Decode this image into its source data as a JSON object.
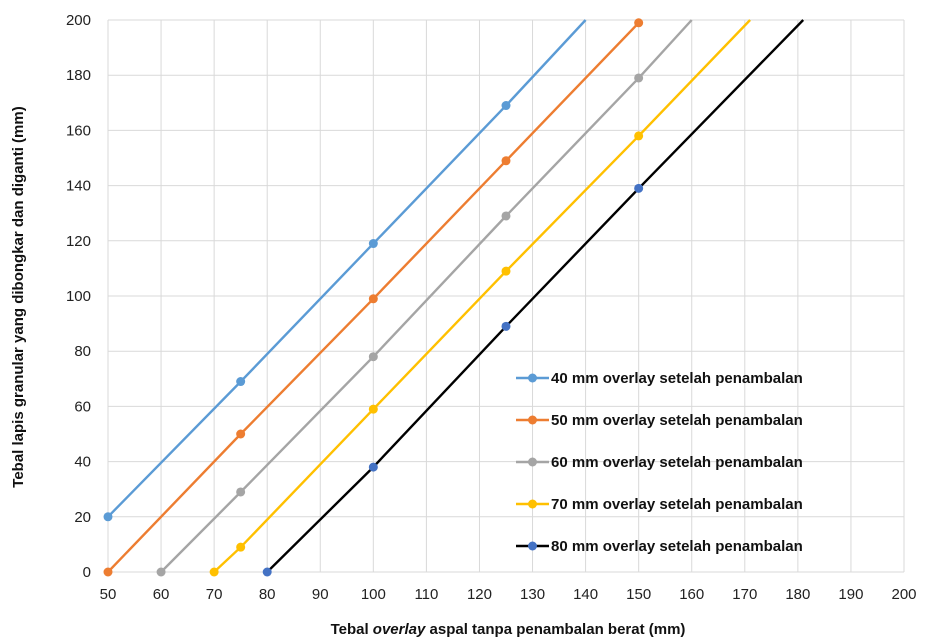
{
  "chart_data": {
    "type": "line",
    "title": "",
    "xlabel": {
      "pre": "Tebal ",
      "italic": "overlay",
      "post": " aspal tanpa penambalan berat (mm)"
    },
    "ylabel": "Tebal lapis granular yang dibongkar dan diganti (mm)",
    "xlim": [
      50,
      200
    ],
    "ylim": [
      0,
      200
    ],
    "xticks": [
      50,
      60,
      70,
      80,
      90,
      100,
      110,
      120,
      130,
      140,
      150,
      160,
      170,
      180,
      190,
      200
    ],
    "yticks": [
      0,
      20,
      40,
      60,
      80,
      100,
      120,
      140,
      160,
      180,
      200
    ],
    "grid": true,
    "legend_position": "bottom-right",
    "series": [
      {
        "name": "40 mm overlay setelah penambalan",
        "color": "#5b9bd5",
        "marker_color": "#5b9bd5",
        "points": [
          [
            50,
            20
          ],
          [
            75,
            69
          ],
          [
            100,
            119
          ],
          [
            125,
            169
          ],
          [
            140,
            200
          ]
        ],
        "markers": [
          [
            50,
            20
          ],
          [
            75,
            69
          ],
          [
            100,
            119
          ],
          [
            125,
            169
          ]
        ]
      },
      {
        "name": "50 mm overlay setelah penambalan",
        "color": "#ed7d31",
        "marker_color": "#ed7d31",
        "points": [
          [
            50,
            0
          ],
          [
            75,
            50
          ],
          [
            100,
            99
          ],
          [
            125,
            149
          ],
          [
            150,
            199
          ]
        ],
        "markers": [
          [
            50,
            0
          ],
          [
            75,
            50
          ],
          [
            100,
            99
          ],
          [
            125,
            149
          ],
          [
            150,
            199
          ]
        ]
      },
      {
        "name": "60 mm overlay setelah penambalan",
        "color": "#a5a5a5",
        "marker_color": "#a5a5a5",
        "points": [
          [
            60,
            0
          ],
          [
            75,
            29
          ],
          [
            100,
            78
          ],
          [
            125,
            129
          ],
          [
            150,
            179
          ],
          [
            160,
            200
          ]
        ],
        "markers": [
          [
            60,
            0
          ],
          [
            75,
            29
          ],
          [
            100,
            78
          ],
          [
            125,
            129
          ],
          [
            150,
            179
          ]
        ]
      },
      {
        "name": "70 mm overlay setelah penambalan",
        "color": "#ffc000",
        "marker_color": "#ffc000",
        "points": [
          [
            70,
            0
          ],
          [
            75,
            9
          ],
          [
            100,
            59
          ],
          [
            125,
            109
          ],
          [
            150,
            158
          ],
          [
            171,
            200
          ]
        ],
        "markers": [
          [
            70,
            0
          ],
          [
            75,
            9
          ],
          [
            100,
            59
          ],
          [
            125,
            109
          ],
          [
            150,
            158
          ]
        ]
      },
      {
        "name": "80 mm overlay setelah penambalan",
        "color": "#000000",
        "marker_color": "#4472c4",
        "points": [
          [
            80,
            0
          ],
          [
            100,
            38
          ],
          [
            125,
            89
          ],
          [
            150,
            139
          ],
          [
            181,
            200
          ]
        ],
        "markers": [
          [
            80,
            0
          ],
          [
            100,
            38
          ],
          [
            125,
            89
          ],
          [
            150,
            139
          ]
        ]
      }
    ]
  }
}
